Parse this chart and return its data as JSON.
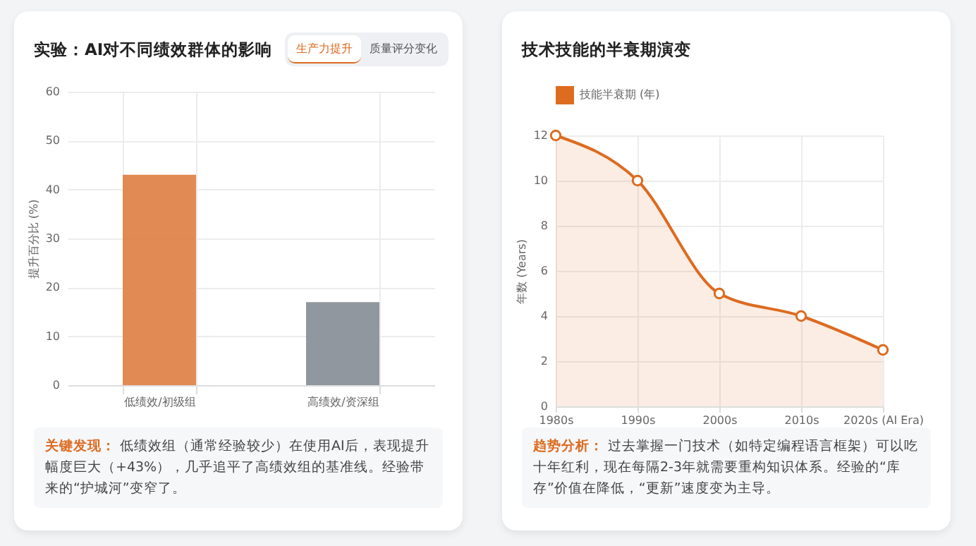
{
  "chart_data": [
    {
      "type": "bar",
      "title": "实验：AI对不同绩效群体的影响",
      "ylabel": "提升百分比 (%)",
      "categories": [
        "低绩效/初级组",
        "高绩效/资深组"
      ],
      "values": [
        43,
        17
      ],
      "colors": [
        "#e0844a",
        "#8b9199"
      ],
      "ylim": [
        0,
        60
      ],
      "yticks": [
        0,
        10,
        20,
        30,
        40,
        50,
        60
      ],
      "grid": true,
      "annotations": [
        "生产力提升",
        "质量评分变化",
        "关键发现：",
        "低绩效组（通常经验较少）在使用AI后，表现提升幅度巨大（+43%），几乎追平了高绩效组的基准线。经验带来的“护城河”变窄了。"
      ]
    },
    {
      "type": "area",
      "title": "技术技能的半衰期演变",
      "ylabel": "年数 (Years)",
      "categories": [
        "1980s",
        "1990s",
        "2000s",
        "2010s",
        "2020s (AI Era)"
      ],
      "series": [
        {
          "name": "技能半衰期 (年)",
          "color": "#dd6b20",
          "values": [
            12,
            10,
            5,
            4,
            2.5
          ]
        }
      ],
      "ylim": [
        0,
        12
      ],
      "yticks": [
        0,
        2,
        4,
        6,
        8,
        10,
        12
      ],
      "grid": true,
      "legend": "top",
      "marker": "circle",
      "annotations": [
        "趋势分析：",
        "过去掌握一门技术（如特定编程语言框架）可以吃十年红利，现在每隔2-3年就需要重构知识体系。经验的“库存”价值在降低，“更新”速度变为主导。"
      ]
    }
  ]
}
